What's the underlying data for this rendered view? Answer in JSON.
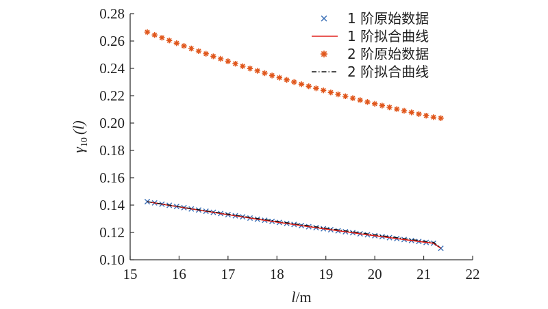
{
  "chart_data": {
    "type": "scatter",
    "title": "",
    "xlabel_italic": "l",
    "xlabel_unit": "/m",
    "ylabel_symbol": "γ",
    "ylabel_subscript": "10",
    "ylabel_arg": "(l)",
    "xlim": [
      15,
      22
    ],
    "ylim": [
      0.1,
      0.28
    ],
    "xticks": [
      "15",
      "16",
      "17",
      "18",
      "19",
      "20",
      "21",
      "22"
    ],
    "yticks": [
      "0.10",
      "0.12",
      "0.14",
      "0.16",
      "0.18",
      "0.20",
      "0.22",
      "0.24",
      "0.26",
      "0.28"
    ],
    "grid": false,
    "legend_position": "top-right",
    "x": [
      15.35,
      15.5,
      15.65,
      15.8,
      15.95,
      16.1,
      16.25,
      16.4,
      16.55,
      16.7,
      16.85,
      17.0,
      17.15,
      17.3,
      17.45,
      17.6,
      17.75,
      17.9,
      18.05,
      18.2,
      18.35,
      18.5,
      18.65,
      18.8,
      18.95,
      19.1,
      19.25,
      19.4,
      19.55,
      19.7,
      19.85,
      20.0,
      20.15,
      20.3,
      20.45,
      20.6,
      20.75,
      20.9,
      21.05,
      21.2,
      21.35
    ],
    "series": [
      {
        "name": "1 阶原始数据",
        "marker": "x",
        "color": "#3a6fb7",
        "values": [
          0.1425,
          0.1416,
          0.1407,
          0.1398,
          0.139,
          0.1381,
          0.1372,
          0.1364,
          0.1355,
          0.1347,
          0.1338,
          0.133,
          0.1322,
          0.1314,
          0.1305,
          0.1297,
          0.1289,
          0.1281,
          0.1273,
          0.1266,
          0.1258,
          0.125,
          0.1242,
          0.1235,
          0.1227,
          0.122,
          0.1212,
          0.1205,
          0.1198,
          0.119,
          0.1183,
          0.1176,
          0.1169,
          0.1162,
          0.1155,
          0.1148,
          0.1141,
          0.1134,
          0.1127,
          0.1121,
          0.1084
        ]
      },
      {
        "name": "1 阶拟合曲线",
        "line": "solid",
        "color": "#e0201b",
        "values": [
          0.1425,
          0.1416,
          0.1407,
          0.1398,
          0.139,
          0.1381,
          0.1372,
          0.1364,
          0.1355,
          0.1347,
          0.1338,
          0.133,
          0.1322,
          0.1314,
          0.1305,
          0.1297,
          0.1289,
          0.1281,
          0.1273,
          0.1266,
          0.1258,
          0.125,
          0.1242,
          0.1235,
          0.1227,
          0.122,
          0.1212,
          0.1205,
          0.1198,
          0.119,
          0.1183,
          0.1176,
          0.1169,
          0.1162,
          0.1155,
          0.1148,
          0.1141,
          0.1134,
          0.1127,
          0.1121,
          0.1084
        ]
      },
      {
        "name": "2 阶原始数据",
        "marker": "asterisk",
        "color": "#e0561b",
        "values": [
          0.2665,
          0.2644,
          0.2624,
          0.2604,
          0.2584,
          0.2564,
          0.2545,
          0.2526,
          0.2507,
          0.2488,
          0.247,
          0.2452,
          0.2434,
          0.2416,
          0.2399,
          0.2382,
          0.2365,
          0.2348,
          0.2332,
          0.2316,
          0.23,
          0.2284,
          0.2269,
          0.2254,
          0.2239,
          0.2224,
          0.221,
          0.2196,
          0.2182,
          0.2168,
          0.2154,
          0.2141,
          0.2128,
          0.2115,
          0.2102,
          0.209,
          0.2078,
          0.2066,
          0.2054,
          0.2043,
          0.2036
        ]
      },
      {
        "name": "2 阶拟合曲线",
        "line": "dash-dot",
        "color": "#111111",
        "values": [
          0.1425,
          0.1417,
          0.1408,
          0.14,
          0.1391,
          0.1383,
          0.1375,
          0.1366,
          0.1358,
          0.135,
          0.1342,
          0.1334,
          0.1326,
          0.1318,
          0.131,
          0.1302,
          0.1294,
          0.1287,
          0.1279,
          0.1271,
          0.1264,
          0.1256,
          0.1249,
          0.1241,
          0.1234,
          0.1226,
          0.1219,
          0.1212,
          0.1205,
          0.1198,
          0.119,
          0.1183,
          0.1176,
          0.1169,
          0.1162,
          0.1155,
          0.1148,
          0.1141,
          0.1134,
          0.1128,
          0.1085
        ]
      }
    ]
  }
}
